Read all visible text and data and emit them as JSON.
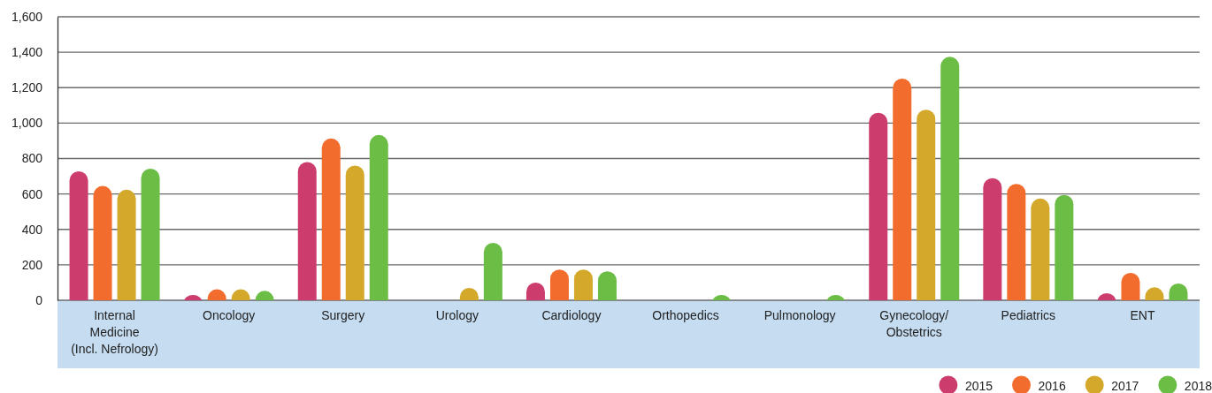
{
  "chart_data": {
    "type": "bar",
    "categories": [
      "Internal\nMedicine\n(Incl. Nefrology)",
      "Oncology",
      "Surgery",
      "Urology",
      "Cardiology",
      "Orthopedics",
      "Pulmonology",
      "Gynecology/\nObstetrics",
      "Pediatrics",
      "ENT"
    ],
    "series": [
      {
        "name": "2015",
        "color": "#cc3d6e",
        "values": [
          728,
          30,
          780,
          0,
          100,
          0,
          0,
          1058,
          689,
          40
        ]
      },
      {
        "name": "2016",
        "color": "#f26c2d",
        "values": [
          645,
          62,
          913,
          0,
          173,
          0,
          0,
          1251,
          657,
          155
        ]
      },
      {
        "name": "2017",
        "color": "#d4a82a",
        "values": [
          624,
          62,
          760,
          70,
          173,
          0,
          0,
          1076,
          574,
          73
        ]
      },
      {
        "name": "2018",
        "color": "#6bbd45",
        "values": [
          743,
          53,
          933,
          324,
          163,
          30,
          30,
          1374,
          595,
          95
        ]
      }
    ],
    "ylim": [
      0,
      1600
    ],
    "yticks": [
      0,
      {
        "value": 200,
        "label": "200"
      },
      {
        "value": 400,
        "label": "400"
      },
      {
        "value": 600,
        "label": "600"
      },
      {
        "value": 800,
        "label": "800"
      },
      {
        "value": 1000,
        "label": "1,000"
      },
      {
        "value": 1200,
        "label": "1,200"
      },
      {
        "value": 1400,
        "label": "1,400"
      },
      {
        "value": 1600,
        "label": "1,600"
      }
    ],
    "grid": "y",
    "legend": "bottom right"
  }
}
